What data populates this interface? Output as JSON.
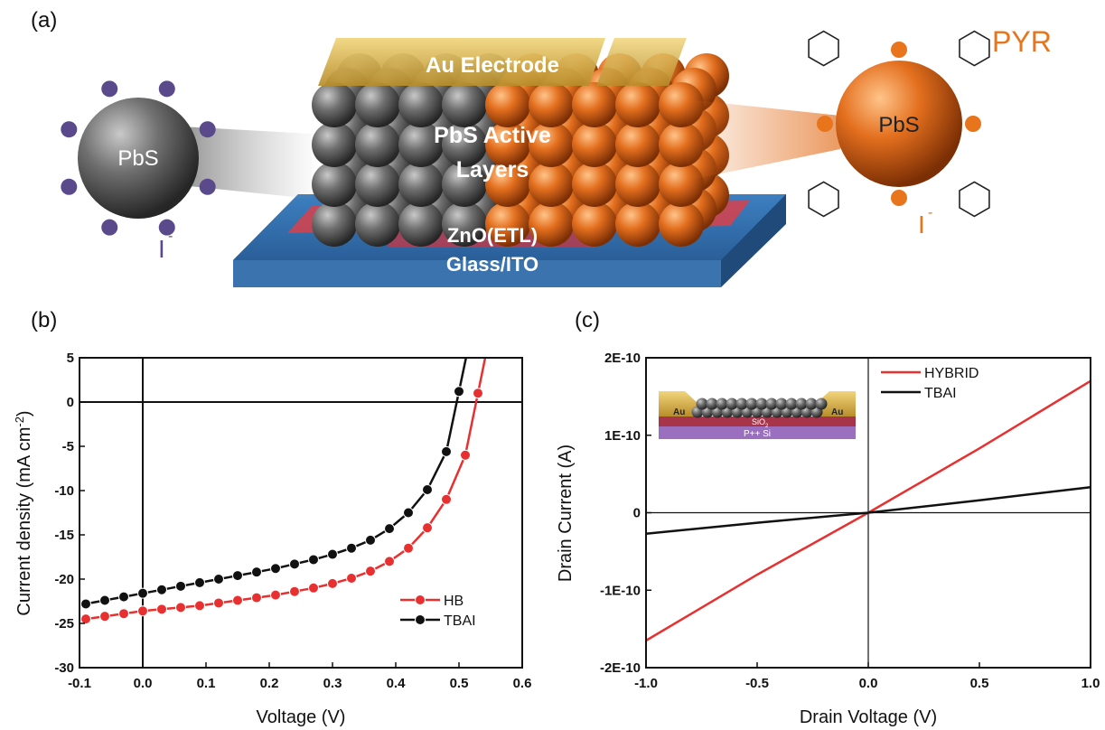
{
  "panel_labels": {
    "a": "(a)",
    "b": "(b)",
    "c": "(c)"
  },
  "schematic": {
    "left_particle": "PbS",
    "right_particle": "PbS",
    "left_ion": "I",
    "left_ion_sup": "-",
    "right_ion": "I",
    "right_ion_sup": "-",
    "pyr_label": "PYR",
    "electrode": "Au Electrode",
    "active_line1": "PbS Active",
    "active_line2": "Layers",
    "etl": "ZnO(ETL)",
    "substrate": "Glass/ITO",
    "colors": {
      "grey_np": "#6e6e6e",
      "orange_np": "#e36f1e",
      "ligand_purple": "#5a4a8c",
      "pyr_orange": "#e8741c",
      "substrate_blue": "#2e6aa8",
      "ito_red": "#d9414a",
      "gold": "#d9b44a"
    }
  },
  "chart_data": [
    {
      "type": "line",
      "panel": "b",
      "xlabel": "Voltage (V)",
      "ylabel": "Current density (mA cm",
      "ylabel_sup": "-2",
      "ylabel_close": ")",
      "xlim": [
        -0.1,
        0.6
      ],
      "ylim": [
        -30,
        5
      ],
      "x_ticks": [
        "-0.1",
        "0.0",
        "0.1",
        "0.2",
        "0.3",
        "0.4",
        "0.5",
        "0.6"
      ],
      "y_ticks": [
        "5",
        "0",
        "-5",
        "-10",
        "-15",
        "-20",
        "-25",
        "-30"
      ],
      "legend_position": "bottom-right",
      "series": [
        {
          "name": "HB",
          "color": "#e83030",
          "x": [
            -0.09,
            -0.06,
            -0.03,
            0.0,
            0.03,
            0.06,
            0.09,
            0.12,
            0.15,
            0.18,
            0.21,
            0.24,
            0.27,
            0.3,
            0.33,
            0.36,
            0.39,
            0.42,
            0.45,
            0.48,
            0.51,
            0.53
          ],
          "y": [
            -24.5,
            -24.2,
            -23.9,
            -23.6,
            -23.4,
            -23.2,
            -23.0,
            -22.7,
            -22.4,
            -22.1,
            -21.8,
            -21.4,
            -21.0,
            -20.5,
            -19.9,
            -19.1,
            -18.0,
            -16.5,
            -14.2,
            -11.0,
            -6.0,
            1.0
          ]
        },
        {
          "name": "TBAI",
          "color": "#111111",
          "x": [
            -0.09,
            -0.06,
            -0.03,
            0.0,
            0.03,
            0.06,
            0.09,
            0.12,
            0.15,
            0.18,
            0.21,
            0.24,
            0.27,
            0.3,
            0.33,
            0.36,
            0.39,
            0.42,
            0.45,
            0.48,
            0.5
          ],
          "y": [
            -22.8,
            -22.4,
            -22.0,
            -21.6,
            -21.2,
            -20.8,
            -20.4,
            -20.0,
            -19.6,
            -19.2,
            -18.8,
            -18.3,
            -17.8,
            -17.2,
            -16.5,
            -15.6,
            -14.3,
            -12.5,
            -9.9,
            -5.6,
            1.2
          ]
        }
      ]
    },
    {
      "type": "line",
      "panel": "c",
      "xlabel": "Drain Voltage (V)",
      "ylabel": "Drain Current (A)",
      "xlim": [
        -1.0,
        1.0
      ],
      "ylim": [
        -2e-10,
        2e-10
      ],
      "x_ticks": [
        "-1.0",
        "-0.5",
        "0.0",
        "0.5",
        "1.0"
      ],
      "y_ticks": [
        "2E-10",
        "1E-10",
        "0",
        "-1E-10",
        "-2E-10"
      ],
      "legend_position": "top-right",
      "series": [
        {
          "name": "HYBRID",
          "color": "#e83030",
          "x": [
            -1.0,
            -0.5,
            0.0,
            0.5,
            1.0
          ],
          "y": [
            -1.65e-10,
            -8e-11,
            0.0,
            8.3e-11,
            1.7e-10
          ]
        },
        {
          "name": "TBAI",
          "color": "#111111",
          "x": [
            -1.0,
            -0.5,
            0.0,
            0.5,
            1.0
          ],
          "y": [
            -2.7e-11,
            -1.3e-11,
            0.0,
            1.6e-11,
            3.3e-11
          ]
        }
      ]
    }
  ],
  "inset_c": {
    "left_contact": "Au",
    "right_contact": "Au",
    "oxide": "SiO",
    "oxide_sub": "2",
    "substrate": "P++ Si"
  }
}
